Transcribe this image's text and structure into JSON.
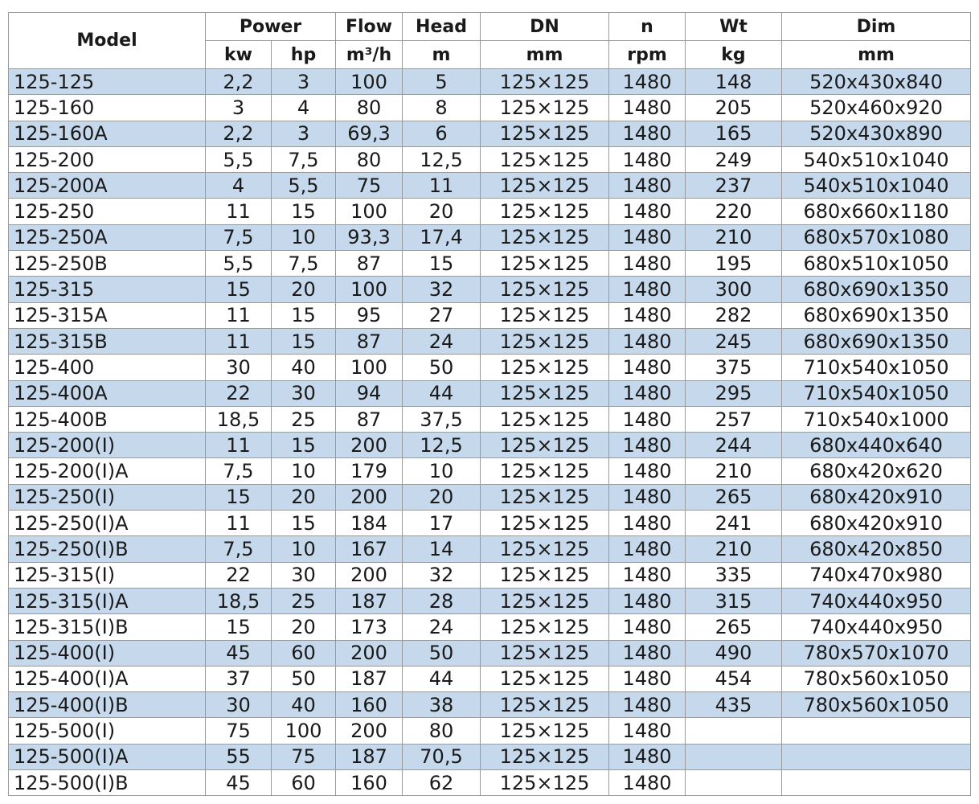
{
  "header": {
    "model": "Model",
    "power": "Power",
    "flow": "Flow",
    "head": "Head",
    "dn": "DN",
    "n": "n",
    "wt": "Wt",
    "dim": "Dim",
    "units": {
      "kw": "kw",
      "hp": "hp",
      "flow": "m³/h",
      "head": "m",
      "dn": "mm",
      "n": "rpm",
      "wt": "kg",
      "dim": "mm"
    }
  },
  "colors": {
    "alt_row": "#c6d9ec",
    "border": "#9a9a9a"
  },
  "rows": [
    [
      "125-125",
      "2,2",
      "3",
      "100",
      "5",
      "125×125",
      "1480",
      "148",
      "520x430x840"
    ],
    [
      "125-160",
      "3",
      "4",
      "80",
      "8",
      "125×125",
      "1480",
      "205",
      "520x460x920"
    ],
    [
      "125-160A",
      "2,2",
      "3",
      "69,3",
      "6",
      "125×125",
      "1480",
      "165",
      "520x430x890"
    ],
    [
      "125-200",
      "5,5",
      "7,5",
      "80",
      "12,5",
      "125×125",
      "1480",
      "249",
      "540x510x1040"
    ],
    [
      "125-200A",
      "4",
      "5,5",
      "75",
      "11",
      "125×125",
      "1480",
      "237",
      "540x510x1040"
    ],
    [
      "125-250",
      "11",
      "15",
      "100",
      "20",
      "125×125",
      "1480",
      "220",
      "680x660x1180"
    ],
    [
      "125-250A",
      "7,5",
      "10",
      "93,3",
      "17,4",
      "125×125",
      "1480",
      "210",
      "680x570x1080"
    ],
    [
      "125-250B",
      "5,5",
      "7,5",
      "87",
      "15",
      "125×125",
      "1480",
      "195",
      "680x510x1050"
    ],
    [
      "125-315",
      "15",
      "20",
      "100",
      "32",
      "125×125",
      "1480",
      "300",
      "680x690x1350"
    ],
    [
      "125-315A",
      "11",
      "15",
      "95",
      "27",
      "125×125",
      "1480",
      "282",
      "680x690x1350"
    ],
    [
      "125-315B",
      "11",
      "15",
      "87",
      "24",
      "125×125",
      "1480",
      "245",
      "680x690x1350"
    ],
    [
      "125-400",
      "30",
      "40",
      "100",
      "50",
      "125×125",
      "1480",
      "375",
      "710x540x1050"
    ],
    [
      "125-400A",
      "22",
      "30",
      "94",
      "44",
      "125×125",
      "1480",
      "295",
      "710x540x1050"
    ],
    [
      "125-400B",
      "18,5",
      "25",
      "87",
      "37,5",
      "125×125",
      "1480",
      "257",
      "710x540x1000"
    ],
    [
      "125-200(I)",
      "11",
      "15",
      "200",
      "12,5",
      "125×125",
      "1480",
      "244",
      "680x440x640"
    ],
    [
      "125-200(I)A",
      "7,5",
      "10",
      "179",
      "10",
      "125×125",
      "1480",
      "210",
      "680x420x620"
    ],
    [
      "125-250(I)",
      "15",
      "20",
      "200",
      "20",
      "125×125",
      "1480",
      "265",
      "680x420x910"
    ],
    [
      "125-250(I)A",
      "11",
      "15",
      "184",
      "17",
      "125×125",
      "1480",
      "241",
      "680x420x910"
    ],
    [
      "125-250(I)B",
      "7,5",
      "10",
      "167",
      "14",
      "125×125",
      "1480",
      "210",
      "680x420x850"
    ],
    [
      "125-315(I)",
      "22",
      "30",
      "200",
      "32",
      "125×125",
      "1480",
      "335",
      "740x470x980"
    ],
    [
      "125-315(I)A",
      "18,5",
      "25",
      "187",
      "28",
      "125×125",
      "1480",
      "315",
      "740x440x950"
    ],
    [
      "125-315(I)B",
      "15",
      "20",
      "173",
      "24",
      "125×125",
      "1480",
      "265",
      "740x440x950"
    ],
    [
      "125-400(I)",
      "45",
      "60",
      "200",
      "50",
      "125×125",
      "1480",
      "490",
      "780x570x1070"
    ],
    [
      "125-400(I)A",
      "37",
      "50",
      "187",
      "44",
      "125×125",
      "1480",
      "454",
      "780x560x1050"
    ],
    [
      "125-400(I)B",
      "30",
      "40",
      "160",
      "38",
      "125×125",
      "1480",
      "435",
      "780x560x1050"
    ],
    [
      "125-500(I)",
      "75",
      "100",
      "200",
      "80",
      "125×125",
      "1480",
      "",
      ""
    ],
    [
      "125-500(I)A",
      "55",
      "75",
      "187",
      "70,5",
      "125×125",
      "1480",
      "",
      ""
    ],
    [
      "125-500(I)B",
      "45",
      "60",
      "160",
      "62",
      "125×125",
      "1480",
      "",
      ""
    ]
  ]
}
